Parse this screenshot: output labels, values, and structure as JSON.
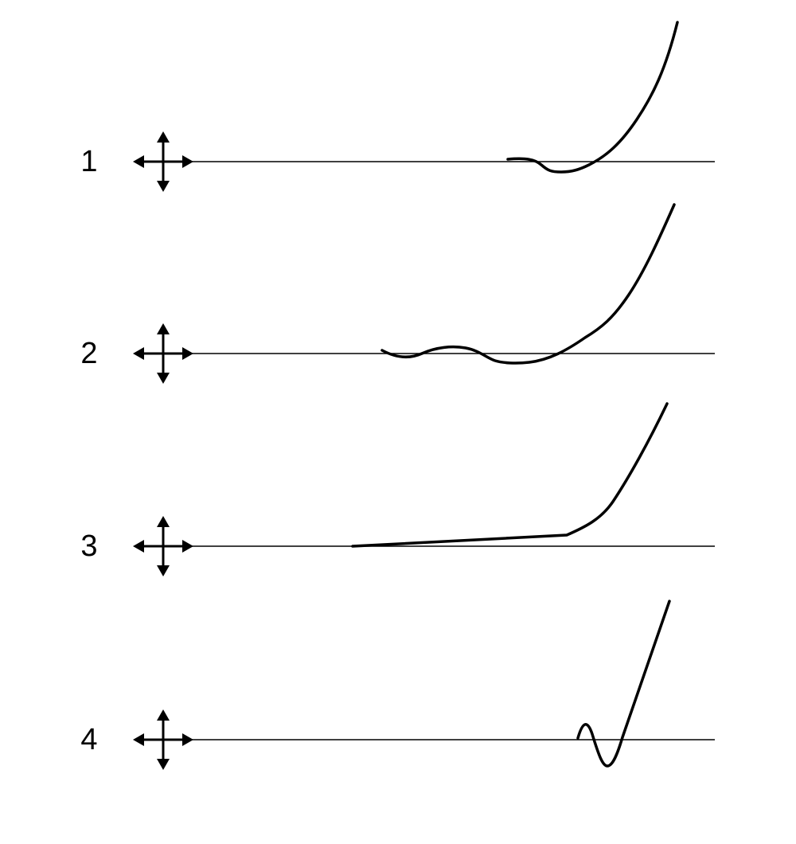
{
  "rows": [
    {
      "label": "1",
      "icon": "move-arrows-icon"
    },
    {
      "label": "2",
      "icon": "move-arrows-icon"
    },
    {
      "label": "3",
      "icon": "move-arrows-icon"
    },
    {
      "label": "4",
      "icon": "move-arrows-icon"
    }
  ],
  "colors": {
    "line": "#000000",
    "background": "#ffffff"
  }
}
